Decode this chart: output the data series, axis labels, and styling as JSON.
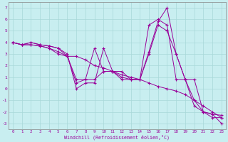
{
  "title": "",
  "xlabel": "Windchill (Refroidissement éolien,°C)",
  "ylabel": "",
  "bg_color": "#c8eef0",
  "line_color": "#990099",
  "xlim": [
    -0.5,
    23.5
  ],
  "ylim": [
    -3.5,
    7.5
  ],
  "xticks": [
    0,
    1,
    2,
    3,
    4,
    5,
    6,
    7,
    8,
    9,
    10,
    11,
    12,
    13,
    14,
    15,
    16,
    17,
    18,
    19,
    20,
    21,
    22,
    23
  ],
  "yticks": [
    -3,
    -2,
    -1,
    0,
    1,
    2,
    3,
    4,
    5,
    6,
    7
  ],
  "lines": [
    [
      0,
      4,
      1,
      3.8,
      2,
      4.0,
      3,
      3.8,
      4,
      3.7,
      5,
      3.5,
      6,
      3.0,
      7,
      0.0,
      8,
      0.5,
      9,
      0.5,
      10,
      3.5,
      11,
      1.5,
      12,
      1.5,
      13,
      0.8,
      14,
      0.8,
      15,
      3.2,
      16,
      5.8,
      17,
      7.0,
      18,
      3.0,
      19,
      0.8,
      20,
      0.8,
      21,
      -2.0,
      22,
      -2.2,
      23,
      -2.3
    ],
    [
      0,
      4,
      1,
      3.8,
      2,
      4.0,
      3,
      3.8,
      4,
      3.7,
      5,
      3.5,
      6,
      2.8,
      7,
      0.5,
      8,
      0.8,
      9,
      0.8,
      10,
      1.5,
      11,
      1.5,
      12,
      1.0,
      13,
      0.8,
      14,
      0.8,
      15,
      5.5,
      16,
      6.0,
      17,
      5.5,
      18,
      0.8,
      19,
      0.8,
      20,
      -1.5,
      21,
      -2.0,
      22,
      -2.2,
      23,
      -3.0
    ],
    [
      0,
      4,
      1,
      3.8,
      2,
      3.8,
      3,
      3.7,
      4,
      3.5,
      5,
      3.2,
      6,
      2.8,
      7,
      2.8,
      8,
      2.5,
      9,
      2.0,
      10,
      1.8,
      11,
      1.5,
      12,
      1.2,
      13,
      1.0,
      14,
      0.8,
      15,
      0.5,
      16,
      0.2,
      17,
      0.0,
      18,
      -0.2,
      19,
      -0.5,
      20,
      -1.0,
      21,
      -1.5,
      22,
      -2.0,
      23,
      -2.5
    ],
    [
      0,
      4,
      1,
      3.8,
      2,
      3.8,
      3,
      3.7,
      4,
      3.5,
      5,
      3.0,
      6,
      2.8,
      7,
      0.8,
      8,
      0.8,
      9,
      3.5,
      10,
      1.5,
      11,
      1.5,
      12,
      0.8,
      13,
      0.8,
      14,
      0.8,
      15,
      3.0,
      16,
      5.5,
      17,
      5.0,
      18,
      3.0,
      19,
      0.8,
      20,
      -1.0,
      21,
      -2.0,
      22,
      -2.5,
      23,
      -2.5
    ]
  ]
}
